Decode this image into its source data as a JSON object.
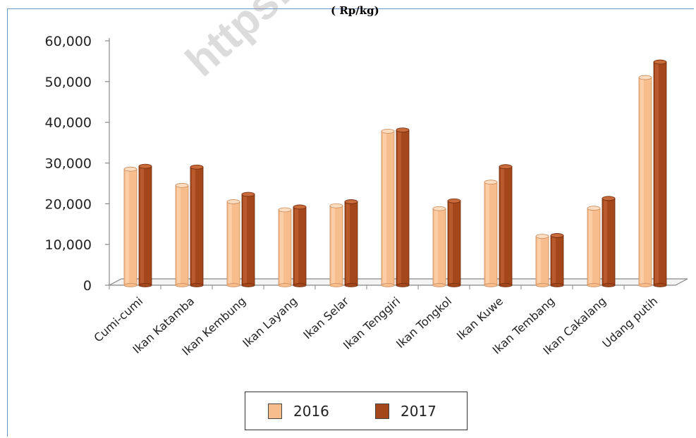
{
  "header": {
    "unit_label": "( Rp/kg)"
  },
  "watermark": {
    "text": "https://s"
  },
  "colors": {
    "s2016": "#F8BD8C",
    "s2016_light": "#FDDCC0",
    "s2016_dark": "#C98B5C",
    "s2017": "#A4471B",
    "s2017_light": "#C86A3A",
    "s2017_dark": "#6E2A0C",
    "axis": "#888888",
    "frame": "#6f96c8"
  },
  "chart_data": {
    "type": "bar",
    "title": "",
    "xlabel": "",
    "ylabel": "",
    "ylim": [
      0,
      60000
    ],
    "yticks": [
      0,
      10000,
      20000,
      30000,
      40000,
      50000,
      60000
    ],
    "ytick_labels": [
      "0",
      "10,000",
      "20,000",
      "30,000",
      "40,000",
      "50,000",
      "60,000"
    ],
    "grid": false,
    "legend_position": "bottom",
    "categories": [
      "Cumi-cumi",
      "Ikan Katamba",
      "Ikan Kembung",
      "Ikan Layang",
      "Ikan Selar",
      "Ikan Tenggiri",
      "Ikan Tongkol",
      "Ikan Kuwe",
      "Ikan Tembang",
      "Ikan Cakalang",
      "Udang putih"
    ],
    "series": [
      {
        "name": "2016",
        "values": [
          28500,
          24500,
          20500,
          18500,
          19500,
          37800,
          18800,
          25300,
          12000,
          18900,
          51000
        ]
      },
      {
        "name": "2017",
        "values": [
          29200,
          29000,
          22300,
          19200,
          20500,
          38100,
          20700,
          29100,
          12200,
          21300,
          54800
        ]
      }
    ]
  }
}
